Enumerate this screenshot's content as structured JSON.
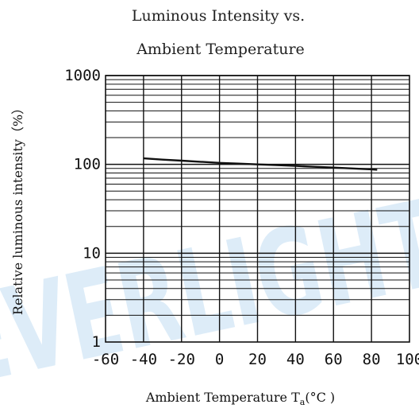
{
  "chart_data": {
    "type": "line",
    "title_lines": [
      "Luminous Intensity vs.",
      "Ambient Temperature"
    ],
    "xlabel_main": "Ambient Temperature T",
    "xlabel_sub": "a",
    "xlabel_unit": "(°C )",
    "ylabel": "Relative luminous intensity（%）",
    "xlim": [
      -60,
      100
    ],
    "ylim": [
      1,
      1000
    ],
    "yscale": "log",
    "xticks": [
      -60,
      -40,
      -20,
      0,
      20,
      40,
      60,
      80,
      100
    ],
    "xtick_labels": [
      "-60",
      "-40",
      "-20",
      "0",
      "20",
      "40",
      "60",
      "80",
      "100"
    ],
    "ytick_labels": [
      {
        "value": 1,
        "label": "1"
      },
      {
        "value": 10,
        "label": "10"
      },
      {
        "value": 100,
        "label": "100"
      },
      {
        "value": 1000,
        "label": "1000"
      }
    ],
    "yminor_grid": [
      2,
      3,
      4,
      5,
      6,
      7,
      8,
      9
    ],
    "grid": true,
    "series": [
      {
        "x": [
          -40,
          -30,
          -20,
          -10,
          0,
          10,
          20,
          30,
          40,
          50,
          60,
          70,
          80,
          83
        ],
        "y": [
          117,
          113,
          110,
          107,
          104,
          102,
          100,
          98,
          96,
          94,
          92,
          90,
          88,
          87
        ]
      }
    ],
    "watermark": "EVERLIGHT",
    "colors": {
      "grid": "#111111",
      "line": "#111111",
      "watermark": "#cfe4f5"
    }
  }
}
